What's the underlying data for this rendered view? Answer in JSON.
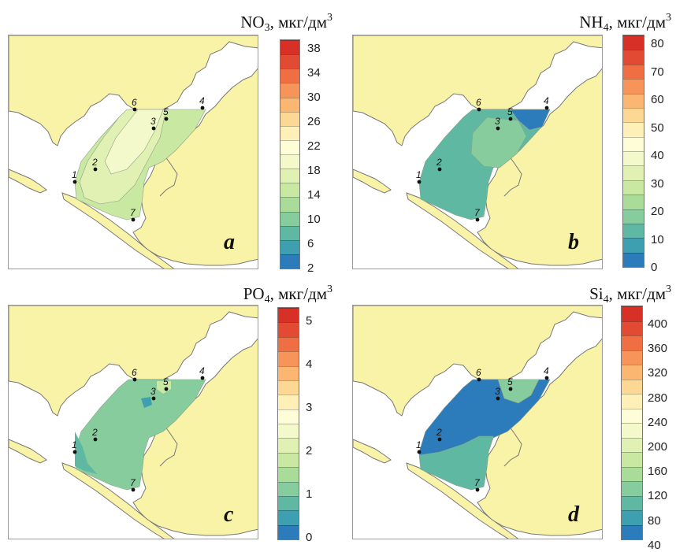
{
  "colors": {
    "land": "#f9f3a8",
    "coast_stroke": "#777777",
    "water": "#ffffff"
  },
  "panels": [
    {
      "id": "a",
      "letter": "a",
      "param": "NO",
      "param_sub": "3",
      "unit": ", мкг/дм",
      "unit_sup": "3",
      "ticks": [
        "38",
        "34",
        "30",
        "26",
        "22",
        "18",
        "14",
        "10",
        "6",
        "2"
      ],
      "colorbar": [
        "#d73027",
        "#e34a33",
        "#ef6e43",
        "#f7945a",
        "#fbb772",
        "#fdd794",
        "#fef0b6",
        "#fffcd8",
        "#f4f9cb",
        "#e1f1b4",
        "#c9e8a2",
        "#aadc99",
        "#87cc9c",
        "#5fb8a2",
        "#3d9fb0",
        "#2c7bba"
      ],
      "zones": [
        {
          "fill": "#c9e8a2"
        },
        {
          "fill": "#e1f1b4"
        },
        {
          "fill": "#f4f9cb"
        }
      ],
      "stations": [
        "1",
        "2",
        "3",
        "4",
        "5",
        "6",
        "7"
      ]
    },
    {
      "id": "b",
      "letter": "b",
      "param": "NH",
      "param_sub": "4",
      "unit": ", мкг/дм",
      "unit_sup": "3",
      "ticks": [
        "80",
        "70",
        "60",
        "50",
        "40",
        "30",
        "20",
        "10",
        "0"
      ],
      "colorbar": [
        "#d73027",
        "#e34a33",
        "#ef6e43",
        "#f7945a",
        "#fbb772",
        "#fdd794",
        "#fef0b6",
        "#fffcd8",
        "#f4f9cb",
        "#e1f1b4",
        "#c9e8a2",
        "#aadc99",
        "#87cc9c",
        "#5fb8a2",
        "#3d9fb0",
        "#2c7bba"
      ],
      "zones": [
        {
          "fill": "#5fb8a2"
        },
        {
          "fill": "#87cc9c"
        },
        {
          "fill": "#2c7bba"
        }
      ],
      "stations": [
        "1",
        "2",
        "3",
        "4",
        "5",
        "6",
        "7"
      ]
    },
    {
      "id": "c",
      "letter": "c",
      "param": "PO",
      "param_sub": "4",
      "unit": ", мкг/дм",
      "unit_sup": "3",
      "ticks": [
        "5",
        "4",
        "3",
        "2",
        "1",
        "0"
      ],
      "colorbar": [
        "#d73027",
        "#e34a33",
        "#ef6e43",
        "#f7945a",
        "#fbb772",
        "#fdd794",
        "#fef0b6",
        "#fffcd8",
        "#f4f9cb",
        "#e1f1b4",
        "#c9e8a2",
        "#aadc99",
        "#87cc9c",
        "#5fb8a2",
        "#3d9fb0",
        "#2c7bba"
      ],
      "zones": [
        {
          "fill": "#87cc9c"
        },
        {
          "fill": "#5fb8a2"
        },
        {
          "fill": "#c9e8a2"
        }
      ],
      "stations": [
        "1",
        "2",
        "3",
        "4",
        "5",
        "6",
        "7"
      ]
    },
    {
      "id": "d",
      "letter": "d",
      "param": "Si",
      "param_sub": "4",
      "unit": ", мкг/дм",
      "unit_sup": "3",
      "ticks": [
        "400",
        "360",
        "320",
        "280",
        "240",
        "200",
        "160",
        "120",
        "80",
        "40"
      ],
      "colorbar": [
        "#d73027",
        "#e34a33",
        "#ef6e43",
        "#f7945a",
        "#fbb772",
        "#fdd794",
        "#fef0b6",
        "#fffcd8",
        "#f4f9cb",
        "#e1f1b4",
        "#c9e8a2",
        "#aadc99",
        "#87cc9c",
        "#5fb8a2",
        "#3d9fb0",
        "#2c7bba"
      ],
      "zones": [
        {
          "fill": "#2c7bba"
        },
        {
          "fill": "#5fb8a2"
        },
        {
          "fill": "#87cc9c"
        }
      ],
      "stations": [
        "1",
        "2",
        "3",
        "4",
        "5",
        "6",
        "7"
      ]
    }
  ]
}
